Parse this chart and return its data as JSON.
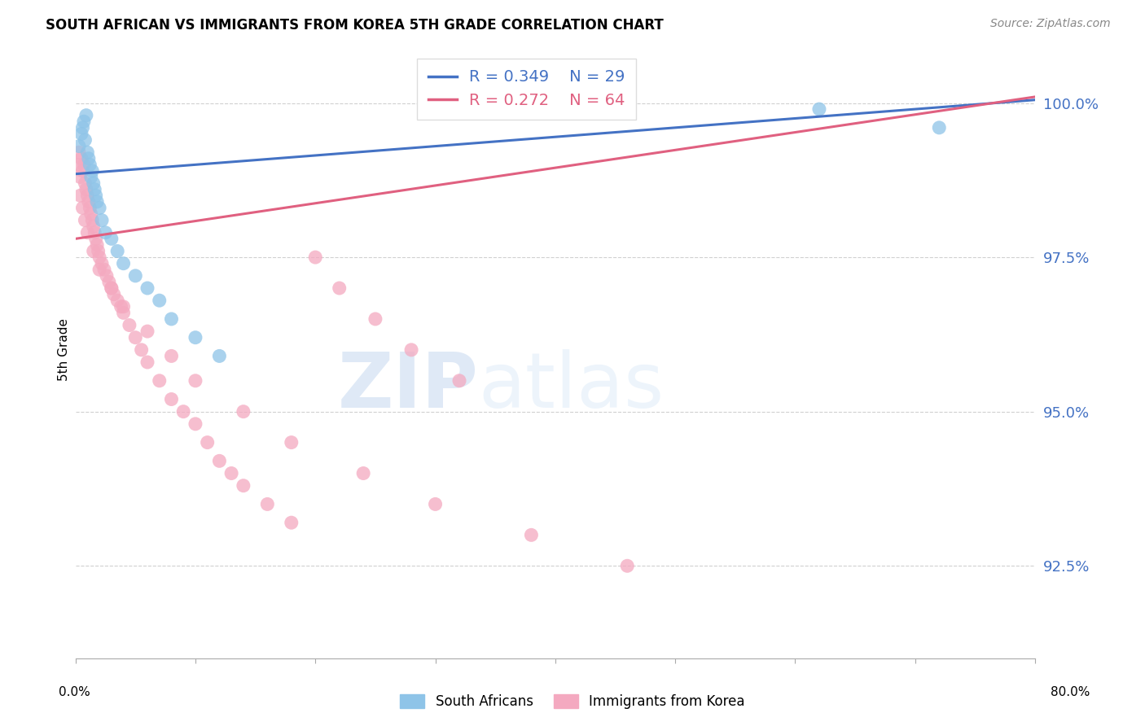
{
  "title": "SOUTH AFRICAN VS IMMIGRANTS FROM KOREA 5TH GRADE CORRELATION CHART",
  "source": "Source: ZipAtlas.com",
  "ylabel": "5th Grade",
  "xlim": [
    0.0,
    80.0
  ],
  "ylim": [
    91.0,
    101.0
  ],
  "yticks": [
    92.5,
    95.0,
    97.5,
    100.0
  ],
  "xticks": [
    0.0,
    10.0,
    20.0,
    30.0,
    40.0,
    50.0,
    60.0,
    70.0,
    80.0
  ],
  "blue_color": "#8ec4e8",
  "pink_color": "#f4a9c0",
  "blue_line_color": "#4472c4",
  "pink_line_color": "#e06080",
  "legend_blue_R": "R = 0.349",
  "legend_blue_N": "N = 29",
  "legend_pink_R": "R = 0.272",
  "legend_pink_N": "N = 64",
  "watermark_zip": "ZIP",
  "watermark_atlas": "atlas",
  "south_africans_x": [
    0.3,
    0.5,
    0.6,
    0.7,
    0.8,
    0.9,
    1.0,
    1.1,
    1.2,
    1.3,
    1.4,
    1.5,
    1.6,
    1.7,
    1.8,
    2.0,
    2.2,
    2.5,
    3.0,
    3.5,
    4.0,
    5.0,
    6.0,
    7.0,
    8.0,
    10.0,
    12.0,
    62.0,
    72.0
  ],
  "south_africans_y": [
    99.3,
    99.5,
    99.6,
    99.7,
    99.4,
    99.8,
    99.2,
    99.1,
    99.0,
    98.8,
    98.9,
    98.7,
    98.6,
    98.5,
    98.4,
    98.3,
    98.1,
    97.9,
    97.8,
    97.6,
    97.4,
    97.2,
    97.0,
    96.8,
    96.5,
    96.2,
    95.9,
    99.9,
    99.6
  ],
  "immigrants_korea_x": [
    0.2,
    0.3,
    0.4,
    0.5,
    0.6,
    0.7,
    0.8,
    0.9,
    1.0,
    1.1,
    1.2,
    1.3,
    1.4,
    1.5,
    1.6,
    1.7,
    1.8,
    1.9,
    2.0,
    2.2,
    2.4,
    2.6,
    2.8,
    3.0,
    3.2,
    3.5,
    3.8,
    4.0,
    4.5,
    5.0,
    5.5,
    6.0,
    7.0,
    8.0,
    9.0,
    10.0,
    11.0,
    12.0,
    13.0,
    14.0,
    16.0,
    18.0,
    20.0,
    22.0,
    25.0,
    28.0,
    32.0,
    0.4,
    0.6,
    0.8,
    1.0,
    1.5,
    2.0,
    3.0,
    4.0,
    6.0,
    8.0,
    10.0,
    14.0,
    18.0,
    24.0,
    30.0,
    38.0,
    46.0
  ],
  "immigrants_korea_y": [
    99.0,
    99.2,
    98.8,
    99.1,
    98.9,
    99.0,
    98.7,
    98.6,
    98.5,
    98.4,
    98.3,
    98.2,
    98.1,
    98.0,
    97.9,
    97.8,
    97.7,
    97.6,
    97.5,
    97.4,
    97.3,
    97.2,
    97.1,
    97.0,
    96.9,
    96.8,
    96.7,
    96.6,
    96.4,
    96.2,
    96.0,
    95.8,
    95.5,
    95.2,
    95.0,
    94.8,
    94.5,
    94.2,
    94.0,
    93.8,
    93.5,
    93.2,
    97.5,
    97.0,
    96.5,
    96.0,
    95.5,
    98.5,
    98.3,
    98.1,
    97.9,
    97.6,
    97.3,
    97.0,
    96.7,
    96.3,
    95.9,
    95.5,
    95.0,
    94.5,
    94.0,
    93.5,
    93.0,
    92.5
  ]
}
